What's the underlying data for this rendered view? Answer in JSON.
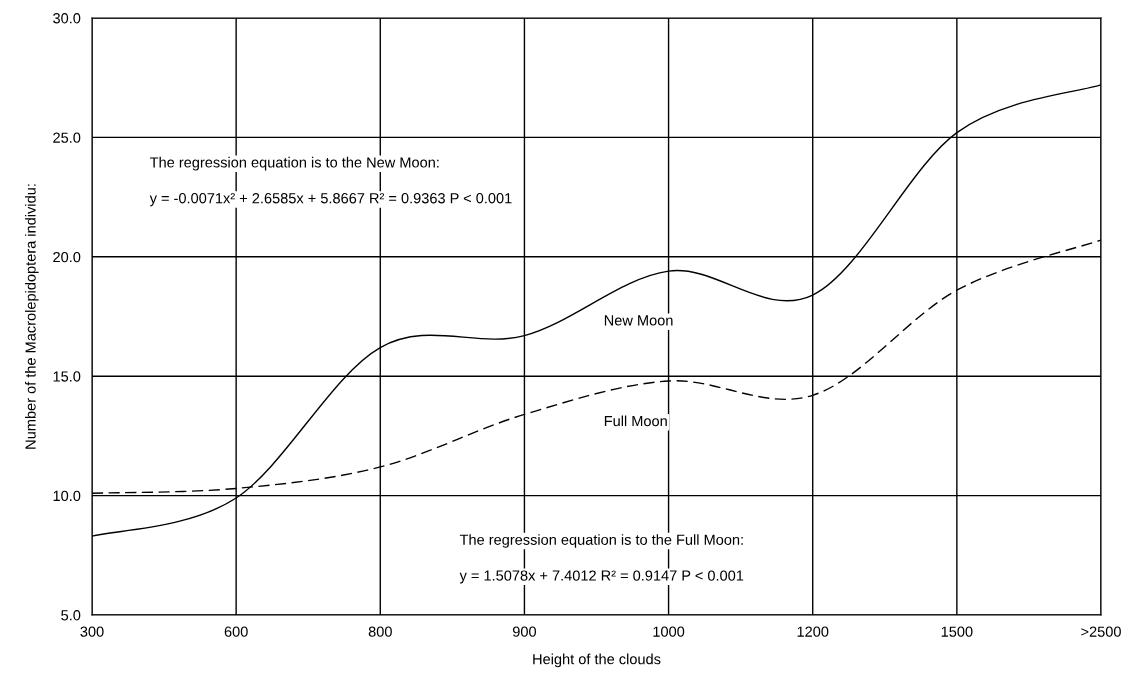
{
  "chart_data": {
    "type": "line",
    "xlabel": "Height of the clouds",
    "ylabel": "Number of the Macrolepidoptera individu:",
    "categories": [
      "300",
      "600",
      "800",
      "900",
      "1000",
      "1200",
      "1500",
      ">2500"
    ],
    "series": [
      {
        "name": "New Moon",
        "color": "#000000",
        "line_style": "solid",
        "values": [
          8.3,
          9.9,
          16.2,
          16.7,
          19.4,
          18.4,
          25.2,
          27.2
        ]
      },
      {
        "name": "Full Moon",
        "color": "#000000",
        "line_style": "dashed",
        "values": [
          10.1,
          10.3,
          11.2,
          13.4,
          14.8,
          14.2,
          18.6,
          20.7
        ]
      }
    ],
    "ylim": [
      5.0,
      30.0
    ],
    "yticks": [
      {
        "value": 5,
        "label": "5.0"
      },
      {
        "value": 10,
        "label": "10.0"
      },
      {
        "value": 15,
        "label": "15.0"
      },
      {
        "value": 20,
        "label": "20.0"
      },
      {
        "value": 25,
        "label": "25.0"
      },
      {
        "value": 30,
        "label": "30.0"
      }
    ],
    "grid": true,
    "legend": false,
    "marker": "none",
    "annotations": [
      "The regression equation is to the New Moon:",
      "y = -0.0071x² + 2.6585x + 5.8667 R² = 0.9363 P < 0.001",
      "The regression equation is to the Full Moon:",
      "y = 1.5078x + 7.4012 R² = 0.9147 P < 0.001"
    ]
  }
}
